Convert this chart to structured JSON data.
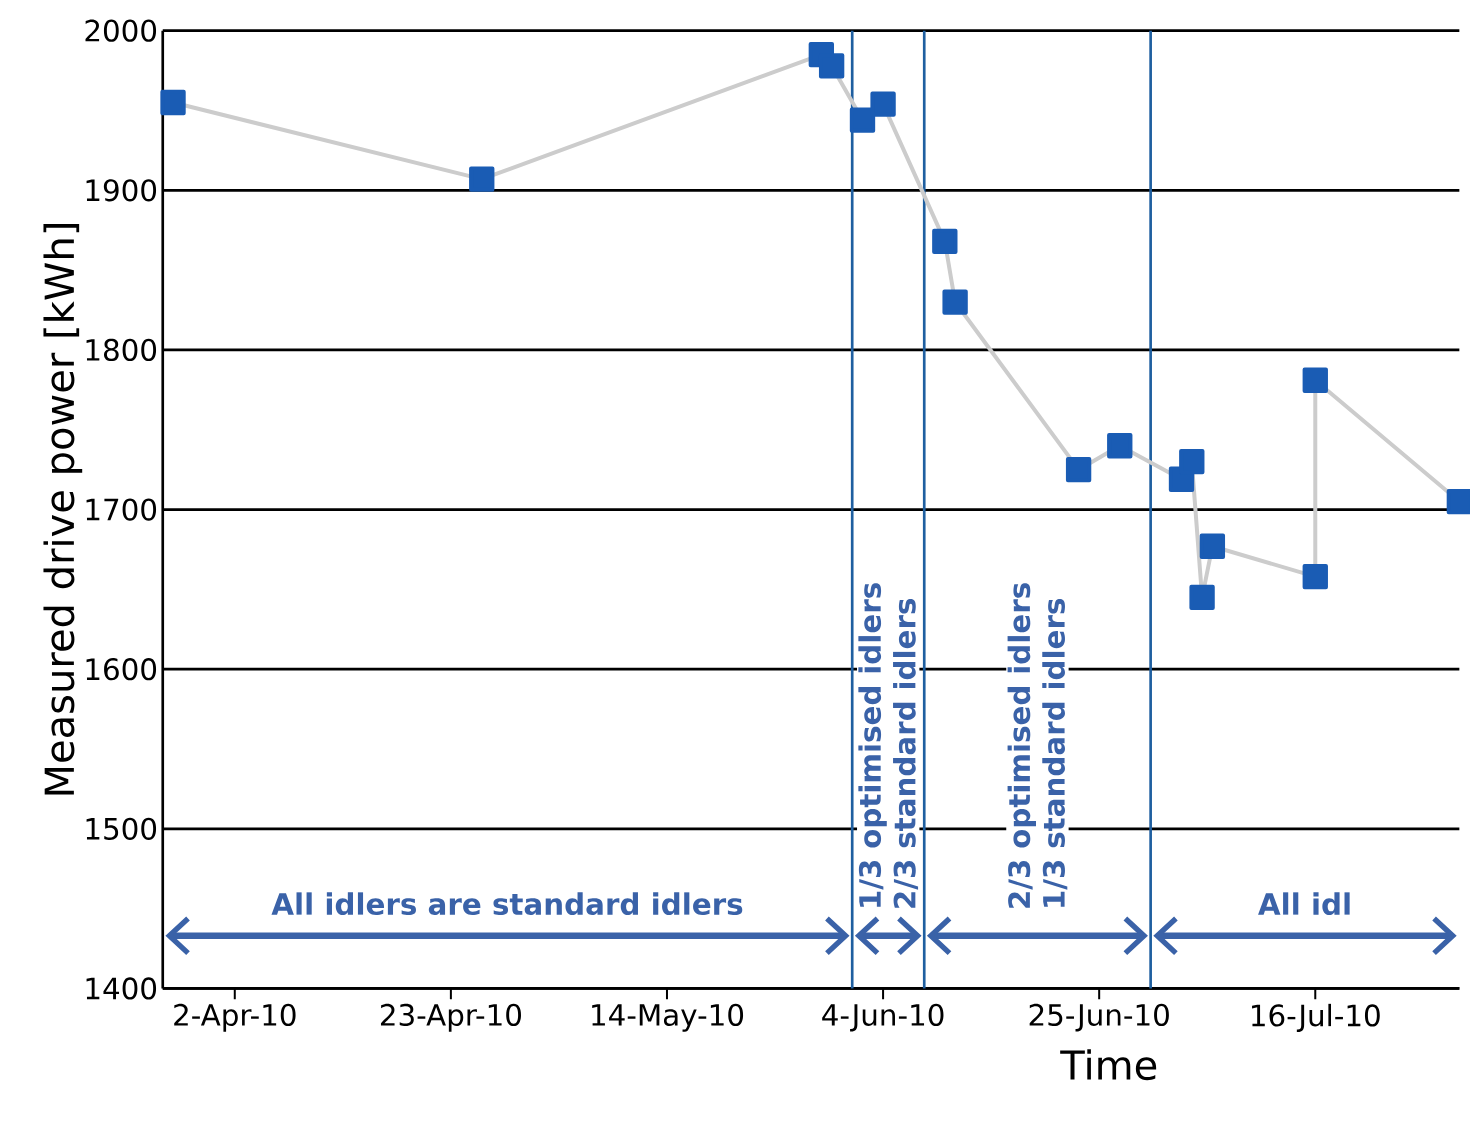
{
  "chart_data": {
    "type": "line",
    "xlabel": "Time",
    "ylabel": "Measured drive power [kWh]",
    "x": [
      "2010-03-27",
      "2010-04-26",
      "2010-05-29",
      "2010-05-30",
      "2010-06-02",
      "2010-06-04",
      "2010-06-10",
      "2010-06-11",
      "2010-06-23",
      "2010-06-27",
      "2010-07-03",
      "2010-07-04",
      "2010-07-05",
      "2010-07-06",
      "2010-07-16",
      "2010-07-16",
      "2010-07-30"
    ],
    "series": [
      {
        "color": "#1a5cb4",
        "values": [
          1955,
          1907,
          1985,
          1978,
          1944,
          1954,
          1868,
          1830,
          1725,
          1740,
          1719,
          1730,
          1645,
          1677,
          1658,
          1781,
          1705
        ]
      }
    ],
    "marker": "square",
    "xlim": [
      "2010-03-26",
      "2010-07-30"
    ],
    "xticks": [
      {
        "value": "2010-04-02",
        "label": "2-Apr-10"
      },
      {
        "value": "2010-04-23",
        "label": "23-Apr-10"
      },
      {
        "value": "2010-05-14",
        "label": "14-May-10"
      },
      {
        "value": "2010-06-04",
        "label": "4-Jun-10"
      },
      {
        "value": "2010-06-25",
        "label": "25-Jun-10"
      },
      {
        "value": "2010-07-16",
        "label": "16-Jul-10"
      }
    ],
    "ylim": [
      1400,
      2000
    ],
    "yticks": [
      1400,
      1500,
      1600,
      1700,
      1800,
      1900,
      2000
    ],
    "grid": "y",
    "ref_lines": [
      {
        "axis": "x",
        "value": "2010-06-01",
        "color": "#1f5fa0"
      },
      {
        "axis": "x",
        "value": "2010-06-08",
        "color": "#1f5fa0"
      },
      {
        "axis": "x",
        "value": "2010-06-30",
        "color": "#1f5fa0"
      }
    ],
    "annotations": [
      "All idlers are standard idlers",
      "1/3 optimised idlers 2/3 standard idlers",
      "2/3 optimised idlers 1/3 standard idlers",
      "All idl"
    ]
  }
}
